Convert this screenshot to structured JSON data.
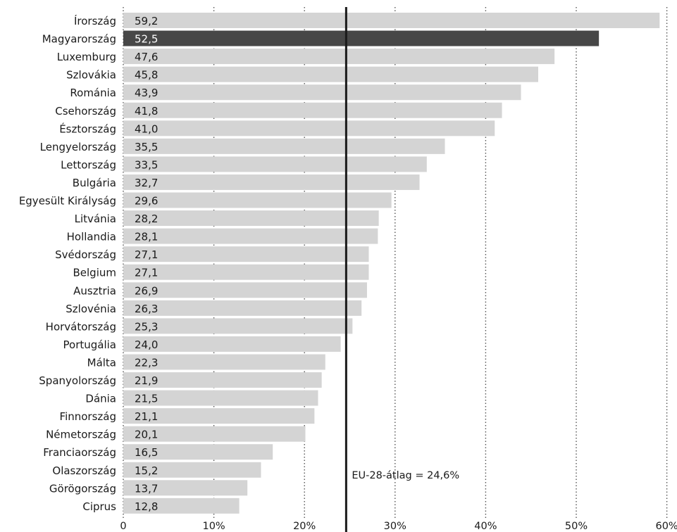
{
  "chart_data": {
    "type": "bar",
    "orientation": "horizontal",
    "categories": [
      "Írország",
      "Magyarország",
      "Luxemburg",
      "Szlovákia",
      "Románia",
      "Csehország",
      "Észtország",
      "Lengyelország",
      "Lettország",
      "Bulgária",
      "Egyesült Királyság",
      "Litvánia",
      "Hollandia",
      "Svédország",
      "Belgium",
      "Ausztria",
      "Szlovénia",
      "Horvátország",
      "Portugália",
      "Málta",
      "Spanyolország",
      "Dánia",
      "Finnország",
      "Németország",
      "Franciaország",
      "Olaszország",
      "Görögország",
      "Ciprus"
    ],
    "values": [
      59.2,
      52.5,
      47.6,
      45.8,
      43.9,
      41.8,
      41.0,
      35.5,
      33.5,
      32.7,
      29.6,
      28.2,
      28.1,
      27.1,
      27.1,
      26.9,
      26.3,
      25.3,
      24.0,
      22.3,
      21.9,
      21.5,
      21.1,
      20.1,
      16.5,
      15.2,
      13.7,
      12.8
    ],
    "value_labels": [
      "59,2",
      "52,5",
      "47,6",
      "45,8",
      "43,9",
      "41,8",
      "41,0",
      "35,5",
      "33,5",
      "32,7",
      "29,6",
      "28,2",
      "28,1",
      "27,1",
      "27,1",
      "26,9",
      "26,3",
      "25,3",
      "24,0",
      "22,3",
      "21,9",
      "21,5",
      "21,1",
      "20,1",
      "16,5",
      "15,2",
      "13,7",
      "12,8"
    ],
    "highlight": "Magyarország",
    "xlim": [
      0,
      60
    ],
    "x_ticks": [
      0,
      10,
      20,
      30,
      40,
      50,
      60
    ],
    "x_tick_labels": [
      "0",
      "10%",
      "20%",
      "30%",
      "40%",
      "50%",
      "60%"
    ],
    "gridlines": "dotted",
    "reference_line": {
      "value": 24.6,
      "label": "EU-28-átlag = 24,6%"
    },
    "title": "",
    "xlabel": "",
    "ylabel": ""
  },
  "colors": {
    "bar": "#d4d4d4",
    "highlight_bar": "#474747",
    "reference_line": "#1a1a1a",
    "value_text": "#1a1a1a",
    "highlight_text": "#ffffff",
    "grid": "#555555"
  }
}
